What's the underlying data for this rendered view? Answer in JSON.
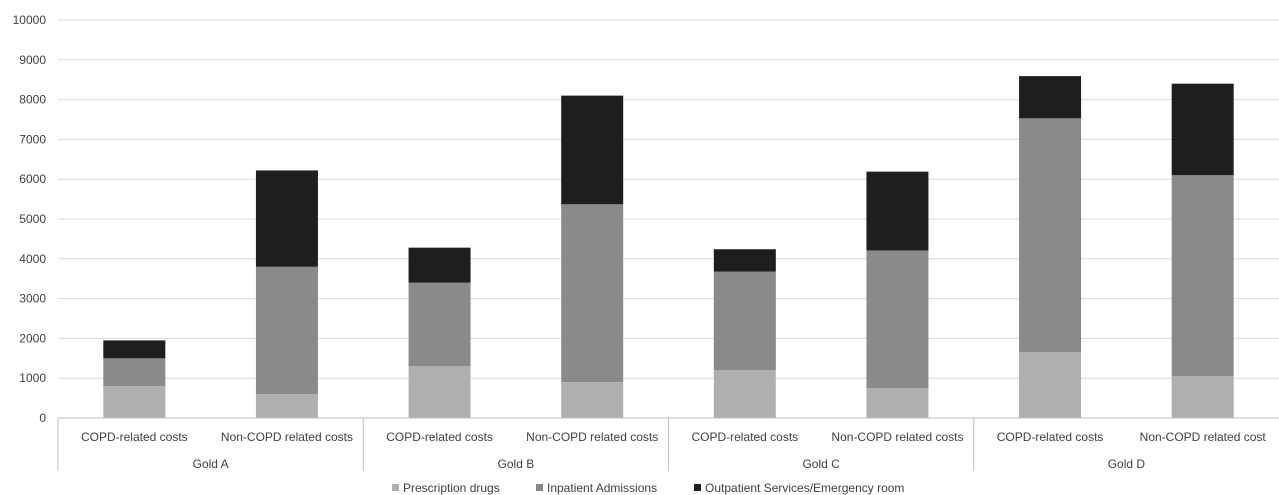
{
  "chart_data": {
    "type": "bar",
    "stacked": true,
    "ylim": [
      0,
      10000
    ],
    "yticks": [
      0,
      1000,
      2000,
      3000,
      4000,
      5000,
      6000,
      7000,
      8000,
      9000,
      10000
    ],
    "grid": true,
    "legend_position": "bottom",
    "groups": [
      {
        "label": "Gold A",
        "categories": [
          "COPD-related costs",
          "Non-COPD related costs"
        ]
      },
      {
        "label": "Gold B",
        "categories": [
          "COPD-related costs",
          "Non-COPD related costs"
        ]
      },
      {
        "label": "Gold C",
        "categories": [
          "COPD-related costs",
          "Non-COPD related costs"
        ]
      },
      {
        "label": "Gold D",
        "categories": [
          "COPD-related costs",
          "Non-COPD related cost"
        ]
      }
    ],
    "series": [
      {
        "name": "Prescription drugs",
        "color": "#afafaf",
        "values": [
          800,
          600,
          1300,
          900,
          1200,
          750,
          1650,
          1050
        ]
      },
      {
        "name": "Inpatient Admissions",
        "color": "#8a8a8a",
        "values": [
          700,
          3200,
          2100,
          4470,
          2480,
          3460,
          5880,
          5050
        ]
      },
      {
        "name": "Outpatient Services/Emergency room",
        "color": "#1e1e1e",
        "values": [
          450,
          2420,
          880,
          2730,
          560,
          1980,
          1060,
          2300
        ]
      }
    ]
  }
}
